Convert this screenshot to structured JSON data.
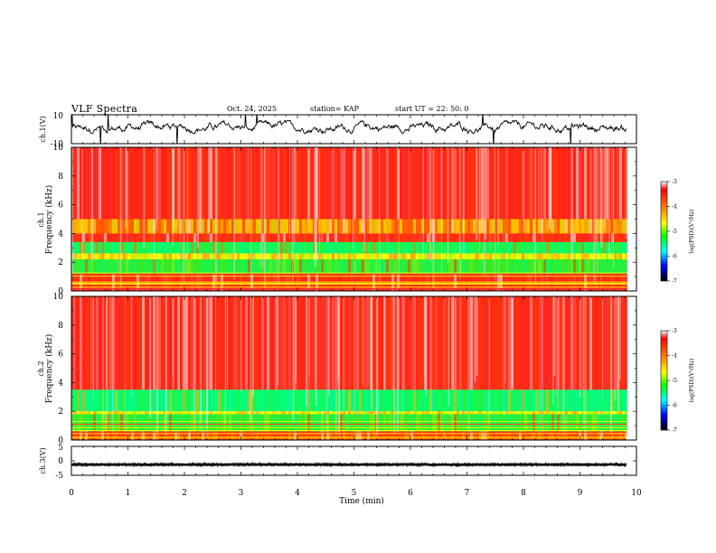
{
  "header": {
    "title": "VLF Spectra",
    "date": "Oct. 24, 2025",
    "station": "station= KAP",
    "start_ut": "start UT =  22: 50: 0"
  },
  "colorbar": {
    "label": "log(PSD)(V²/Hz)",
    "ticks": [
      "-3",
      "-4",
      "-5",
      "-6",
      "-7"
    ],
    "colors": [
      "#ff0000",
      "#ffff00",
      "#00ff00",
      "#00ffff",
      "#0000ff",
      "#000000"
    ]
  },
  "chart_data": [
    {
      "type": "line",
      "id": "ch1-waveform",
      "title": "VLF Spectra",
      "ylabel": "ch.1(V)",
      "ylim": [
        -10,
        10
      ],
      "yticks": [
        "10",
        "-10"
      ],
      "xlim": [
        0,
        10
      ],
      "trace_range": [
        0,
        9.83
      ],
      "envelope_v": [
        -3,
        6
      ],
      "note": "dense oscillating waveform, mostly between -3 V and +6 V"
    },
    {
      "type": "heatmap",
      "id": "ch1-spectrogram",
      "ylabel": "ch.1\nFrequency  (kHz)",
      "ylim": [
        0,
        10
      ],
      "yticks": [
        "0",
        "2",
        "4",
        "6",
        "8",
        "10"
      ],
      "xlim": [
        0,
        10
      ],
      "data_end_min": 9.83,
      "colorbar_range": [
        -7,
        -3
      ],
      "bands": [
        {
          "from_khz": 5.0,
          "to_khz": 10.0,
          "log_psd": -3.4,
          "label": "red with light streaks"
        },
        {
          "from_khz": 4.0,
          "to_khz": 5.0,
          "log_psd": -3.9,
          "label": "yellow/red"
        },
        {
          "from_khz": 3.4,
          "to_khz": 4.0,
          "log_psd": -3.5,
          "label": "red"
        },
        {
          "from_khz": 2.6,
          "to_khz": 3.4,
          "log_psd": -4.8,
          "label": "green/cyan"
        },
        {
          "from_khz": 2.2,
          "to_khz": 2.6,
          "log_psd": -4.1,
          "label": "yellow"
        },
        {
          "from_khz": 1.2,
          "to_khz": 2.2,
          "log_psd": -4.6,
          "label": "green"
        },
        {
          "from_khz": 0.0,
          "to_khz": 1.2,
          "log_psd": -3.5,
          "label": "red/yellow lines"
        }
      ]
    },
    {
      "type": "heatmap",
      "id": "ch2-spectrogram",
      "ylabel": "ch.2\nFrequency  (kHz)",
      "ylim": [
        0,
        10
      ],
      "yticks": [
        "0",
        "2",
        "4",
        "6",
        "8",
        "10"
      ],
      "xlim": [
        0,
        10
      ],
      "data_end_min": 9.83,
      "colorbar_range": [
        -7,
        -3
      ],
      "bands": [
        {
          "from_khz": 3.5,
          "to_khz": 10.0,
          "log_psd": -3.4,
          "label": "red with light streaks"
        },
        {
          "from_khz": 2.0,
          "to_khz": 3.5,
          "log_psd": -4.9,
          "label": "green/cyan"
        },
        {
          "from_khz": 1.8,
          "to_khz": 2.0,
          "log_psd": -4.1,
          "label": "yellow"
        },
        {
          "from_khz": 0.6,
          "to_khz": 1.8,
          "log_psd": -4.6,
          "label": "green"
        },
        {
          "from_khz": 0.0,
          "to_khz": 0.6,
          "log_psd": -3.6,
          "label": "red/yellow lines"
        }
      ]
    },
    {
      "type": "line",
      "id": "ch3-waveform",
      "ylabel": "ch.3(V)",
      "ylim": [
        -5,
        5
      ],
      "yticks": [
        "5",
        "0",
        "-5"
      ],
      "xlim": [
        0,
        10
      ],
      "trace_range": [
        0,
        9.83
      ],
      "trace_center_v": -1.3,
      "trace_halfwidth_v": 0.4
    }
  ],
  "x_axis": {
    "label": "Time  (min)",
    "ticks": [
      "0",
      "1",
      "2",
      "3",
      "4",
      "5",
      "6",
      "7",
      "8",
      "9",
      "10"
    ]
  }
}
